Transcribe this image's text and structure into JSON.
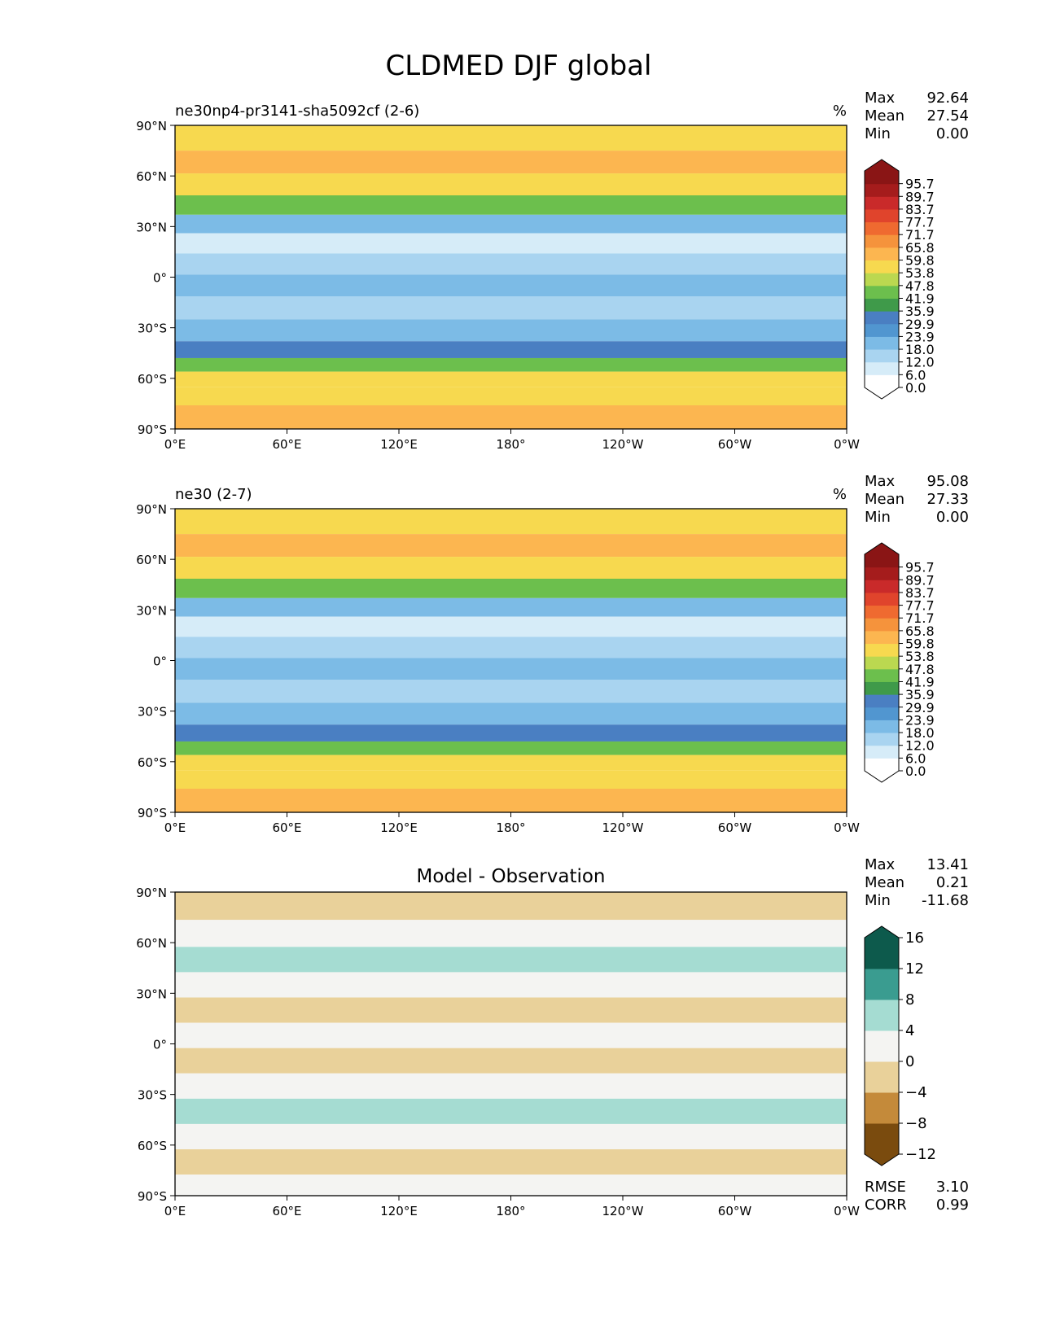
{
  "title": "CLDMED DJF global",
  "lon_ticks": [
    "0°E",
    "60°E",
    "120°E",
    "180°",
    "120°W",
    "60°W",
    "0°W"
  ],
  "lat_ticks": [
    "90°N",
    "60°N",
    "30°N",
    "0°",
    "30°S",
    "60°S",
    "90°S"
  ],
  "stat_labels": {
    "max": "Max",
    "mean": "Mean",
    "min": "Min",
    "rmse": "RMSE",
    "corr": "CORR"
  },
  "chart_data": [
    {
      "type": "heatmap",
      "title": "ne30np4-pr3141-sha5092cf (2-6)",
      "units": "%",
      "stats": {
        "max": "92.64",
        "mean": "27.54",
        "min": "0.00"
      },
      "colorbar": {
        "levels": [
          "0.0",
          "6.0",
          "12.0",
          "18.0",
          "23.9",
          "29.9",
          "35.9",
          "41.9",
          "47.8",
          "53.8",
          "59.8",
          "65.8",
          "71.7",
          "77.7",
          "83.7",
          "89.7",
          "95.7"
        ],
        "colors": [
          "#ffffff",
          "#d6ecf8",
          "#a9d4f0",
          "#7cbbe6",
          "#5196d0",
          "#4a7fc2",
          "#3f9a4a",
          "#6cbf4d",
          "#bbd850",
          "#f7d94f",
          "#fcb650",
          "#f5933c",
          "#ef6a30",
          "#e0442c",
          "#c92a2a",
          "#a51c1c",
          "#8a1515"
        ],
        "extend": "both"
      },
      "xlim": [
        0,
        360
      ],
      "ylim": [
        -90,
        90
      ],
      "bands": [
        {
          "lat": 82,
          "level": 9
        },
        {
          "lat": 68,
          "level": 10
        },
        {
          "lat": 55,
          "level": 9
        },
        {
          "lat": 42,
          "level": 7
        },
        {
          "lat": 32,
          "level": 3
        },
        {
          "lat": 20,
          "level": 1
        },
        {
          "lat": 8,
          "level": 2
        },
        {
          "lat": -5,
          "level": 3
        },
        {
          "lat": -18,
          "level": 2
        },
        {
          "lat": -32,
          "level": 3
        },
        {
          "lat": -44,
          "level": 5
        },
        {
          "lat": -52,
          "level": 7
        },
        {
          "lat": -60,
          "level": 9
        },
        {
          "lat": -70,
          "level": 9
        },
        {
          "lat": -82,
          "level": 10
        }
      ]
    },
    {
      "type": "heatmap",
      "title": "ne30 (2-7)",
      "units": "%",
      "stats": {
        "max": "95.08",
        "mean": "27.33",
        "min": "0.00"
      },
      "colorbar": {
        "levels": [
          "0.0",
          "6.0",
          "12.0",
          "18.0",
          "23.9",
          "29.9",
          "35.9",
          "41.9",
          "47.8",
          "53.8",
          "59.8",
          "65.8",
          "71.7",
          "77.7",
          "83.7",
          "89.7",
          "95.7"
        ],
        "colors": [
          "#ffffff",
          "#d6ecf8",
          "#a9d4f0",
          "#7cbbe6",
          "#5196d0",
          "#4a7fc2",
          "#3f9a4a",
          "#6cbf4d",
          "#bbd850",
          "#f7d94f",
          "#fcb650",
          "#f5933c",
          "#ef6a30",
          "#e0442c",
          "#c92a2a",
          "#a51c1c",
          "#8a1515"
        ],
        "extend": "both"
      },
      "xlim": [
        0,
        360
      ],
      "ylim": [
        -90,
        90
      ],
      "bands": [
        {
          "lat": 82,
          "level": 9
        },
        {
          "lat": 68,
          "level": 10
        },
        {
          "lat": 55,
          "level": 9
        },
        {
          "lat": 42,
          "level": 7
        },
        {
          "lat": 32,
          "level": 3
        },
        {
          "lat": 20,
          "level": 1
        },
        {
          "lat": 8,
          "level": 2
        },
        {
          "lat": -5,
          "level": 3
        },
        {
          "lat": -18,
          "level": 2
        },
        {
          "lat": -32,
          "level": 3
        },
        {
          "lat": -44,
          "level": 5
        },
        {
          "lat": -52,
          "level": 7
        },
        {
          "lat": -60,
          "level": 9
        },
        {
          "lat": -70,
          "level": 9
        },
        {
          "lat": -82,
          "level": 10
        }
      ]
    },
    {
      "type": "heatmap",
      "title": "Model - Observation",
      "units": "",
      "stats": {
        "max": "13.41",
        "mean": "0.21",
        "min": "-11.68",
        "rmse": "3.10",
        "corr": "0.99"
      },
      "colorbar": {
        "levels": [
          "−12",
          "−8",
          "−4",
          "0",
          "4",
          "8",
          "12",
          "16"
        ],
        "colors": [
          "#7a4b0e",
          "#c48a3a",
          "#e9d19a",
          "#f4f4f2",
          "#a5dcd2",
          "#3a9c90",
          "#0d5a4c"
        ],
        "extend": "both"
      },
      "xlim": [
        0,
        360
      ],
      "ylim": [
        -90,
        90
      ],
      "bands": [
        {
          "lat": 82,
          "level": 2
        },
        {
          "lat": 65,
          "level": 3
        },
        {
          "lat": 50,
          "level": 4
        },
        {
          "lat": 35,
          "level": 3
        },
        {
          "lat": 20,
          "level": 2
        },
        {
          "lat": 5,
          "level": 3
        },
        {
          "lat": -10,
          "level": 2
        },
        {
          "lat": -25,
          "level": 3
        },
        {
          "lat": -40,
          "level": 4
        },
        {
          "lat": -55,
          "level": 3
        },
        {
          "lat": -70,
          "level": 2
        },
        {
          "lat": -85,
          "level": 3
        }
      ]
    }
  ]
}
